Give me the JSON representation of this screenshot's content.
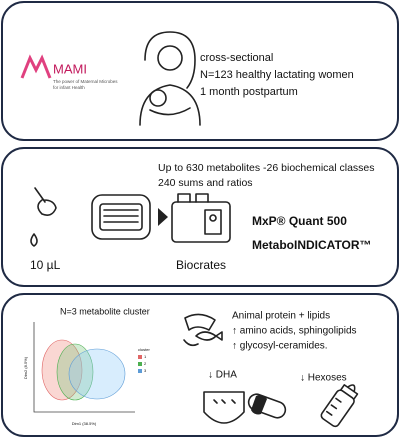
{
  "logo": {
    "name": "MAMI",
    "tagline_1": "The power of Maternal Microbes",
    "tagline_2": "for infant Health"
  },
  "study": {
    "lines": [
      "cross-sectional",
      "N=123 healthy lactating women",
      "1 month postpartum"
    ]
  },
  "method": {
    "lines": [
      "Up to 630 metabolites -26 biochemical classes",
      "240 sums and ratios"
    ],
    "volume": "10 µL",
    "vendor": "Biocrates",
    "kit": "MxP® Quant 500",
    "index": "MetaboINDICATOR™"
  },
  "results": {
    "title": "N=3 metabolite cluster",
    "plot": {
      "x_label": "Dim1 (38.5%)",
      "y_label": "Dim2 (8.5%)",
      "legend_title": "cluster",
      "legend": [
        "1",
        "2",
        "3"
      ]
    },
    "findings": [
      "Animal protein + lipids",
      "↑ amino acids, sphingolipids",
      "↑ glycosyl-ceramides."
    ],
    "dha": "↓ DHA",
    "hexoses": "↓ Hexoses"
  }
}
